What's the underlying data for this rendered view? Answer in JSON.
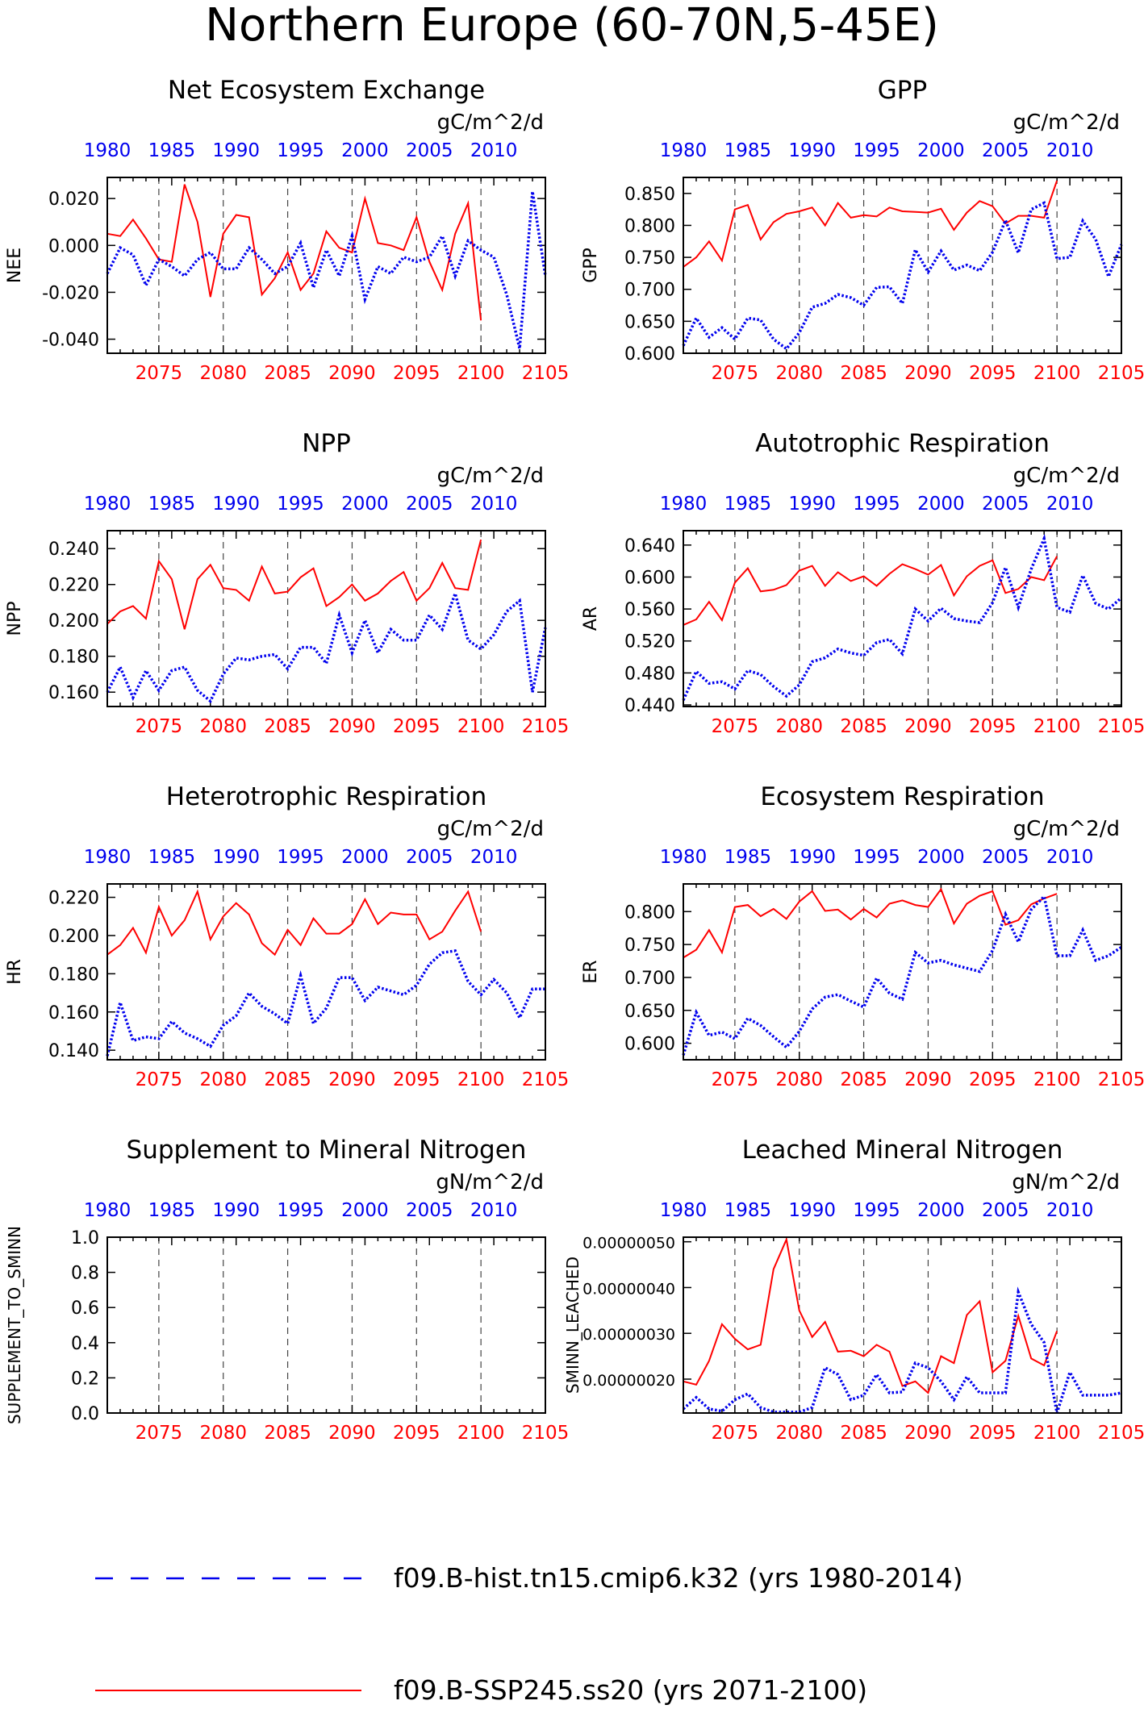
{
  "page": {
    "title": "Northern Europe (60-70N,5-45E)"
  },
  "colors": {
    "hist": "#0000ee",
    "future": "#ff0000",
    "axis": "#000000",
    "grid": "#444444"
  },
  "legend": {
    "hist_label": "f09.B-hist.tn15.cmip6.k32 (yrs 1980-2014)",
    "future_label": "f09.B-SSP245.ss20 (yrs 2071-2100)"
  },
  "axes": {
    "top_ticks": [
      "1980",
      "1985",
      "1990",
      "1995",
      "2000",
      "2005",
      "2010"
    ],
    "bottom_ticks": [
      "2075",
      "2080",
      "2085",
      "2090",
      "2095",
      "2100",
      "2105"
    ],
    "top_color": "blue",
    "bottom_color": "red",
    "vgrid_years": [
      2075,
      2080,
      2085,
      2090,
      2095,
      2100
    ]
  },
  "chart_data": [
    {
      "type": "line",
      "title": "Net Ecosystem Exchange",
      "ylabel": "NEE",
      "units": "gC/m^2/d",
      "ylim": [
        -0.046,
        0.029
      ],
      "yticks": [
        -0.04,
        -0.02,
        0.0,
        0.02
      ],
      "yticklabels": [
        "-0.040",
        "-0.020",
        "0.000",
        "0.020"
      ],
      "series": [
        {
          "values": [
            0.005,
            0.004,
            0.011,
            0.003,
            -0.006,
            -0.007,
            0.026,
            0.01,
            -0.022,
            0.005,
            0.013,
            0.012,
            -0.021,
            -0.014,
            -0.003,
            -0.019,
            -0.012,
            0.006,
            -0.001,
            -0.003,
            0.02,
            0.001,
            0.0,
            -0.002,
            0.012,
            -0.007,
            -0.019,
            0.005,
            0.018,
            -0.032
          ]
        },
        {
          "values": [
            -0.012,
            -0.001,
            -0.004,
            -0.017,
            -0.006,
            -0.009,
            -0.013,
            -0.006,
            -0.003,
            -0.01,
            -0.01,
            -0.001,
            -0.006,
            -0.012,
            -0.009,
            0.001,
            -0.018,
            -0.002,
            -0.013,
            0.004,
            -0.023,
            -0.009,
            -0.012,
            -0.005,
            -0.007,
            -0.005,
            0.004,
            -0.013,
            0.002,
            -0.002,
            -0.005,
            -0.021,
            -0.044,
            0.023,
            -0.013
          ]
        }
      ]
    },
    {
      "type": "line",
      "title": "GPP",
      "ylabel": "GPP",
      "units": "gC/m^2/d",
      "ylim": [
        0.6,
        0.875
      ],
      "yticks": [
        0.6,
        0.65,
        0.7,
        0.75,
        0.8,
        0.85
      ],
      "yticklabels": [
        "0.600",
        "0.650",
        "0.700",
        "0.750",
        "0.800",
        "0.850"
      ],
      "series": [
        {
          "values": [
            0.735,
            0.75,
            0.775,
            0.745,
            0.825,
            0.832,
            0.778,
            0.805,
            0.818,
            0.822,
            0.828,
            0.8,
            0.835,
            0.812,
            0.816,
            0.814,
            0.828,
            0.822,
            0.821,
            0.82,
            0.826,
            0.793,
            0.82,
            0.838,
            0.83,
            0.803,
            0.815,
            0.815,
            0.812,
            0.87
          ]
        },
        {
          "values": [
            0.612,
            0.655,
            0.625,
            0.64,
            0.622,
            0.655,
            0.652,
            0.622,
            0.607,
            0.632,
            0.672,
            0.678,
            0.692,
            0.687,
            0.675,
            0.703,
            0.704,
            0.678,
            0.762,
            0.727,
            0.76,
            0.73,
            0.738,
            0.729,
            0.758,
            0.808,
            0.757,
            0.825,
            0.835,
            0.748,
            0.75,
            0.807,
            0.778,
            0.72,
            0.77
          ]
        }
      ]
    },
    {
      "type": "line",
      "title": "NPP",
      "ylabel": "NPP",
      "units": "gC/m^2/d",
      "ylim": [
        0.152,
        0.25
      ],
      "yticks": [
        0.16,
        0.18,
        0.2,
        0.22,
        0.24
      ],
      "yticklabels": [
        "0.160",
        "0.180",
        "0.200",
        "0.220",
        "0.240"
      ],
      "series": [
        {
          "values": [
            0.198,
            0.205,
            0.208,
            0.201,
            0.233,
            0.223,
            0.195,
            0.223,
            0.231,
            0.218,
            0.217,
            0.211,
            0.23,
            0.215,
            0.216,
            0.224,
            0.229,
            0.208,
            0.213,
            0.22,
            0.211,
            0.215,
            0.222,
            0.227,
            0.211,
            0.218,
            0.232,
            0.218,
            0.217,
            0.245
          ]
        },
        {
          "values": [
            0.16,
            0.174,
            0.157,
            0.172,
            0.161,
            0.172,
            0.174,
            0.161,
            0.155,
            0.17,
            0.179,
            0.178,
            0.18,
            0.181,
            0.173,
            0.185,
            0.185,
            0.176,
            0.203,
            0.182,
            0.2,
            0.182,
            0.195,
            0.189,
            0.189,
            0.203,
            0.195,
            0.215,
            0.189,
            0.184,
            0.192,
            0.205,
            0.211,
            0.16,
            0.196
          ]
        }
      ]
    },
    {
      "type": "line",
      "title": "Autotrophic Respiration",
      "ylabel": "AR",
      "units": "gC/m^2/d",
      "ylim": [
        0.438,
        0.658
      ],
      "yticks": [
        0.44,
        0.48,
        0.52,
        0.56,
        0.6,
        0.64
      ],
      "yticklabels": [
        "0.440",
        "0.480",
        "0.520",
        "0.560",
        "0.600",
        "0.640"
      ],
      "series": [
        {
          "values": [
            0.54,
            0.547,
            0.569,
            0.546,
            0.593,
            0.611,
            0.582,
            0.584,
            0.59,
            0.608,
            0.614,
            0.589,
            0.606,
            0.595,
            0.601,
            0.589,
            0.604,
            0.616,
            0.61,
            0.603,
            0.615,
            0.577,
            0.601,
            0.614,
            0.621,
            0.58,
            0.585,
            0.6,
            0.596,
            0.626
          ]
        },
        {
          "values": [
            0.446,
            0.482,
            0.467,
            0.469,
            0.46,
            0.483,
            0.478,
            0.463,
            0.451,
            0.465,
            0.494,
            0.499,
            0.51,
            0.505,
            0.502,
            0.518,
            0.522,
            0.504,
            0.56,
            0.545,
            0.561,
            0.548,
            0.545,
            0.543,
            0.568,
            0.612,
            0.562,
            0.61,
            0.648,
            0.562,
            0.556,
            0.602,
            0.567,
            0.56,
            0.574
          ]
        }
      ]
    },
    {
      "type": "line",
      "title": "Heterotrophic Respiration",
      "ylabel": "HR",
      "units": "gC/m^2/d",
      "ylim": [
        0.135,
        0.227
      ],
      "yticks": [
        0.14,
        0.16,
        0.18,
        0.2,
        0.22
      ],
      "yticklabels": [
        "0.140",
        "0.160",
        "0.180",
        "0.200",
        "0.220"
      ],
      "series": [
        {
          "values": [
            0.19,
            0.195,
            0.204,
            0.191,
            0.215,
            0.2,
            0.208,
            0.223,
            0.198,
            0.21,
            0.217,
            0.211,
            0.196,
            0.19,
            0.203,
            0.195,
            0.209,
            0.201,
            0.201,
            0.206,
            0.219,
            0.206,
            0.212,
            0.211,
            0.211,
            0.198,
            0.202,
            0.213,
            0.223,
            0.202
          ]
        },
        {
          "values": [
            0.137,
            0.165,
            0.145,
            0.147,
            0.146,
            0.155,
            0.149,
            0.146,
            0.142,
            0.153,
            0.158,
            0.17,
            0.163,
            0.159,
            0.154,
            0.179,
            0.154,
            0.162,
            0.178,
            0.178,
            0.166,
            0.173,
            0.171,
            0.169,
            0.174,
            0.185,
            0.191,
            0.192,
            0.176,
            0.169,
            0.177,
            0.17,
            0.157,
            0.172,
            0.172
          ]
        }
      ]
    },
    {
      "type": "line",
      "title": "Ecosystem Respiration",
      "ylabel": "ER",
      "units": "gC/m^2/d",
      "ylim": [
        0.575,
        0.842
      ],
      "yticks": [
        0.6,
        0.65,
        0.7,
        0.75,
        0.8
      ],
      "yticklabels": [
        "0.600",
        "0.650",
        "0.700",
        "0.750",
        "0.800"
      ],
      "series": [
        {
          "values": [
            0.73,
            0.742,
            0.772,
            0.738,
            0.807,
            0.81,
            0.793,
            0.804,
            0.789,
            0.815,
            0.831,
            0.801,
            0.803,
            0.788,
            0.804,
            0.791,
            0.812,
            0.817,
            0.81,
            0.807,
            0.834,
            0.782,
            0.812,
            0.824,
            0.831,
            0.78,
            0.787,
            0.811,
            0.82,
            0.827
          ]
        },
        {
          "values": [
            0.582,
            0.647,
            0.612,
            0.617,
            0.607,
            0.638,
            0.627,
            0.61,
            0.594,
            0.618,
            0.652,
            0.67,
            0.674,
            0.664,
            0.655,
            0.699,
            0.676,
            0.667,
            0.738,
            0.722,
            0.726,
            0.719,
            0.714,
            0.709,
            0.741,
            0.796,
            0.754,
            0.803,
            0.823,
            0.733,
            0.733,
            0.772,
            0.726,
            0.733,
            0.746
          ]
        }
      ]
    },
    {
      "type": "line",
      "title": "Supplement to Mineral Nitrogen",
      "ylabel": "SUPPLEMENT_TO_SMINN",
      "units": "gN/m^2/d",
      "ylim": [
        0.0,
        1.0
      ],
      "yticks": [
        0.0,
        0.2,
        0.4,
        0.6,
        0.8,
        1.0
      ],
      "yticklabels": [
        "0.0",
        "0.2",
        "0.4",
        "0.6",
        "0.8",
        "1.0"
      ],
      "series": [
        {
          "values": []
        },
        {
          "values": []
        }
      ]
    },
    {
      "type": "line",
      "title": "Leached Mineral Nitrogen",
      "ylabel": "SMINN_LEACHED",
      "units": "gN/m^2/d",
      "ylim": [
        1.26e-07,
        5.1e-07
      ],
      "yticks": [
        2e-07,
        3e-07,
        4e-07,
        5e-07
      ],
      "yticklabels": [
        "0.00000020",
        "0.00000030",
        "0.00000040",
        "0.00000050"
      ],
      "series": [
        {
          "values": [
            1.95e-07,
            1.88e-07,
            2.4e-07,
            3.2e-07,
            2.88e-07,
            2.65e-07,
            2.75e-07,
            4.4e-07,
            5.05e-07,
            3.5e-07,
            2.92e-07,
            3.25e-07,
            2.6e-07,
            2.62e-07,
            2.5e-07,
            2.75e-07,
            2.6e-07,
            1.85e-07,
            1.95e-07,
            1.7e-07,
            2.5e-07,
            2.35e-07,
            3.4e-07,
            3.7e-07,
            2.15e-07,
            2.4e-07,
            3.38e-07,
            2.45e-07,
            2.3e-07,
            3.05e-07
          ]
        },
        {
          "values": [
            1.35e-07,
            1.6e-07,
            1.35e-07,
            1.3e-07,
            1.55e-07,
            1.68e-07,
            1.38e-07,
            1.28e-07,
            1.28e-07,
            1.28e-07,
            1.38e-07,
            2.25e-07,
            2.1e-07,
            1.55e-07,
            1.65e-07,
            2.1e-07,
            1.7e-07,
            1.72e-07,
            2.35e-07,
            2.25e-07,
            1.95e-07,
            1.55e-07,
            2.05e-07,
            1.7e-07,
            1.7e-07,
            1.7e-07,
            3.9e-07,
            3.2e-07,
            2.8e-07,
            1.26e-07,
            2.15e-07,
            1.65e-07,
            1.65e-07,
            1.65e-07,
            1.7e-07
          ]
        }
      ]
    }
  ]
}
